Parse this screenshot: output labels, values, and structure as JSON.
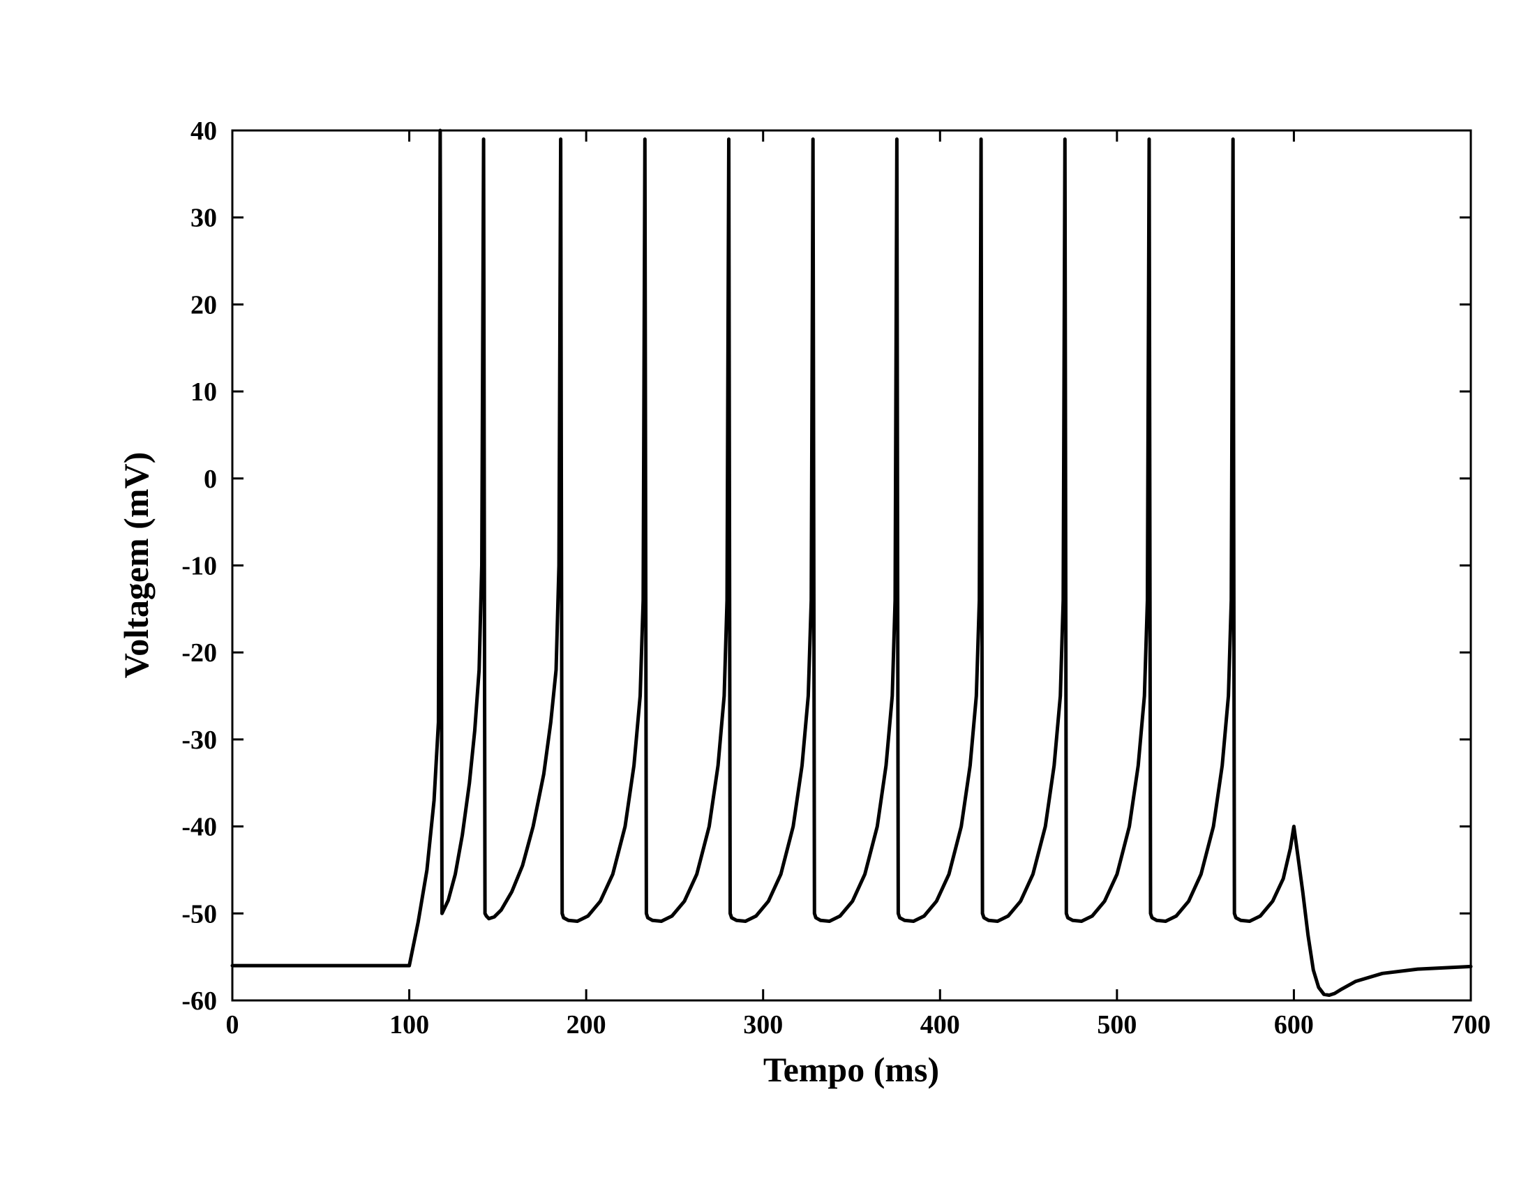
{
  "chart_data": {
    "type": "line",
    "title": "",
    "xlabel": "Tempo (ms)",
    "ylabel": "Voltagem (mV)",
    "xlim": [
      0,
      700
    ],
    "ylim": [
      -60,
      40
    ],
    "xticks": [
      0,
      100,
      200,
      300,
      400,
      500,
      600,
      700
    ],
    "yticks": [
      -60,
      -50,
      -40,
      -30,
      -20,
      -10,
      0,
      10,
      20,
      30,
      40
    ],
    "xtick_labels": [
      "0",
      "100",
      "200",
      "300",
      "400",
      "500",
      "600",
      "700"
    ],
    "ytick_labels": [
      "-60",
      "-50",
      "-40",
      "-30",
      "-20",
      "-10",
      "0",
      "10",
      "20",
      "30",
      "40"
    ],
    "grid": false,
    "legend": "none",
    "colors": {
      "line": "#000000",
      "frame": "#000000",
      "background": "#ffffff"
    },
    "series": [
      {
        "values_description_free": true,
        "x": [
          0,
          100,
          105,
          110,
          114,
          116.5,
          117.5,
          118.5,
          122,
          126,
          130,
          134,
          137,
          139.5,
          141,
          142,
          142.8,
          143.6,
          145,
          148,
          152,
          158,
          164,
          170,
          176,
          180,
          183,
          184.6,
          185.6,
          186.4,
          187.2,
          190,
          195,
          201,
          208,
          215,
          222,
          227,
          230.5,
          232.2,
          233.2,
          234,
          234.8,
          237.5,
          242.5,
          248.5,
          255.5,
          262.5,
          269.5,
          274.5,
          278,
          279.6,
          280.6,
          281.4,
          282.2,
          285,
          290,
          296,
          303,
          310,
          317,
          322,
          325.5,
          327.2,
          328.2,
          329,
          329.8,
          332.5,
          337.5,
          343.5,
          350.5,
          357.5,
          364.5,
          369.5,
          373,
          374.6,
          375.6,
          376.4,
          377.2,
          380,
          385,
          391,
          398,
          405,
          412,
          417,
          420.5,
          422.2,
          423.2,
          424,
          424.8,
          427.5,
          432.5,
          438.5,
          445.5,
          452.5,
          459.5,
          464.5,
          468,
          469.6,
          470.6,
          471.4,
          472.2,
          475,
          480,
          486,
          493,
          500,
          507,
          512,
          515.5,
          517.2,
          518.2,
          519,
          519.8,
          522.5,
          527.5,
          533.5,
          540.5,
          547.5,
          554.5,
          559.5,
          563,
          564.6,
          565.6,
          566.4,
          567.2,
          570,
          575,
          581,
          588,
          594,
          598,
          600,
          602,
          605,
          608,
          611,
          614,
          617,
          620,
          623,
          627,
          635,
          650,
          670,
          700
        ],
        "y": [
          -56,
          -56,
          -51,
          -45,
          -37,
          -28,
          40,
          -50,
          -48.5,
          -45.5,
          -41,
          -35,
          -29,
          -22,
          -10,
          39,
          -50,
          -50.3,
          -50.6,
          -50.4,
          -49.6,
          -47.5,
          -44.5,
          -40,
          -34,
          -28,
          -22,
          -10,
          39,
          -50,
          -50.5,
          -50.8,
          -50.9,
          -50.3,
          -48.6,
          -45.5,
          -40,
          -33,
          -25,
          -14,
          39,
          -50,
          -50.5,
          -50.8,
          -50.9,
          -50.3,
          -48.6,
          -45.5,
          -40,
          -33,
          -25,
          -14,
          39,
          -50,
          -50.5,
          -50.8,
          -50.9,
          -50.3,
          -48.6,
          -45.5,
          -40,
          -33,
          -25,
          -14,
          39,
          -50,
          -50.5,
          -50.8,
          -50.9,
          -50.3,
          -48.6,
          -45.5,
          -40,
          -33,
          -25,
          -14,
          39,
          -50,
          -50.5,
          -50.8,
          -50.9,
          -50.3,
          -48.6,
          -45.5,
          -40,
          -33,
          -25,
          -14,
          39,
          -50,
          -50.5,
          -50.8,
          -50.9,
          -50.3,
          -48.6,
          -45.5,
          -40,
          -33,
          -25,
          -14,
          39,
          -50,
          -50.5,
          -50.8,
          -50.9,
          -50.3,
          -48.6,
          -45.5,
          -40,
          -33,
          -25,
          -14,
          39,
          -50,
          -50.5,
          -50.8,
          -50.9,
          -50.3,
          -48.6,
          -45.5,
          -40,
          -33,
          -25,
          -14,
          39,
          -50,
          -50.5,
          -50.8,
          -50.9,
          -50.3,
          -48.6,
          -46,
          -42.5,
          -40,
          -43,
          -47.5,
          -52.5,
          -56.5,
          -58.5,
          -59.3,
          -59.4,
          -59.2,
          -58.7,
          -57.8,
          -56.9,
          -56.4,
          -56.1
        ]
      }
    ]
  }
}
